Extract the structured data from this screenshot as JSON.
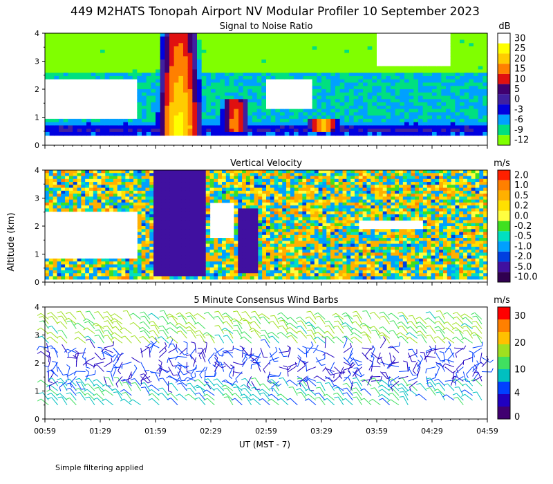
{
  "title": "449 M2HATS Tonopah Airport NV Modular Profiler 10 September 2023",
  "y_label": "Altitude (km)",
  "x_label": "UT  (MST - 7)",
  "footnote": "Simple filtering applied",
  "colors": {
    "background": "#ffffff",
    "axis": "#000000",
    "missing": "#ffffff"
  },
  "chart_data": [
    {
      "type": "heatmap",
      "title": "Signal to Noise Ratio",
      "units": "dB",
      "x_ticks": [
        "00:59",
        "01:29",
        "01:59",
        "02:29",
        "02:59",
        "03:29",
        "03:59",
        "04:29",
        "04:59"
      ],
      "y_ticks": [
        "0",
        "1",
        "2",
        "3",
        "4"
      ],
      "ylim": [
        0,
        4
      ],
      "xlim": [
        "00:59",
        "04:59"
      ],
      "colorbar": {
        "labels": [
          "30",
          "25",
          "20",
          "15",
          "10",
          "5",
          "0",
          "-3",
          "-6",
          "-9",
          "-12"
        ],
        "colors": [
          "#ffffff",
          "#ffff00",
          "#ffcc00",
          "#ff8000",
          "#e01010",
          "#400070",
          "#4020a0",
          "#0000e0",
          "#00a0ff",
          "#00e080",
          "#80ff00"
        ]
      },
      "features": [
        {
          "time": "02:12",
          "alt_range": [
            0.4,
            4.0
          ],
          "peak_db": 25,
          "description_label": ""
        },
        {
          "time": "02:42",
          "alt_range": [
            0.5,
            1.6
          ],
          "peak_db": 15,
          "description_label": ""
        },
        {
          "time": "03:30",
          "alt_range": [
            0.5,
            0.9
          ],
          "peak_db": 20,
          "description_label": ""
        }
      ]
    },
    {
      "type": "heatmap",
      "title": "Vertical Velocity",
      "units": "m/s",
      "x_ticks": [
        "00:59",
        "01:29",
        "01:59",
        "02:29",
        "02:59",
        "03:29",
        "03:59",
        "04:29",
        "04:59"
      ],
      "y_ticks": [
        "0",
        "1",
        "2",
        "3",
        "4"
      ],
      "ylim": [
        0,
        4
      ],
      "xlim": [
        "00:59",
        "04:59"
      ],
      "colorbar": {
        "labels": [
          "2.0",
          "1.0",
          "0.5",
          "0.2",
          "0.0",
          "-0.2",
          "-0.5",
          "-1.0",
          "-2.0",
          "-5.0",
          "-10.0"
        ],
        "colors": [
          "#ff2000",
          "#ff8000",
          "#ffb000",
          "#ffe000",
          "#ffff40",
          "#40e020",
          "#00e0c0",
          "#00a0ff",
          "#0040e0",
          "#4010a0",
          "#300050"
        ]
      },
      "features": [
        {
          "time_range": [
            "01:57",
            "02:27"
          ],
          "alt_range": [
            0.2,
            4.0
          ],
          "value": -5.0
        },
        {
          "time_range": [
            "02:43",
            "02:55"
          ],
          "alt_range": [
            0.3,
            2.6
          ],
          "value": -5.0
        }
      ]
    },
    {
      "type": "wind_barbs",
      "title": "5 Minute Consensus Wind Barbs",
      "units": "m/s",
      "x_ticks": [
        "00:59",
        "01:29",
        "01:59",
        "02:29",
        "02:59",
        "03:29",
        "03:59",
        "04:29",
        "04:59"
      ],
      "y_ticks": [
        "0",
        "1",
        "2",
        "3",
        "4"
      ],
      "ylim": [
        0,
        4
      ],
      "xlim": [
        "00:59",
        "04:59"
      ],
      "colorbar": {
        "labels": [
          "30",
          "20",
          "10",
          "4",
          "0"
        ],
        "colors": [
          "#ff0000",
          "#ff8000",
          "#ffc000",
          "#a0e020",
          "#40e060",
          "#00c0c0",
          "#0040ff",
          "#2000c0",
          "#400070"
        ]
      },
      "regimes": [
        {
          "alt_range": [
            2.7,
            3.7
          ],
          "speed_ms": 12,
          "direction": "southwest"
        },
        {
          "alt_range": [
            0.5,
            1.4
          ],
          "speed_ms": 7,
          "direction": "southwest"
        },
        {
          "alt_range": [
            1.2,
            2.7
          ],
          "speed_ms": 3,
          "direction": "variable"
        }
      ]
    }
  ]
}
